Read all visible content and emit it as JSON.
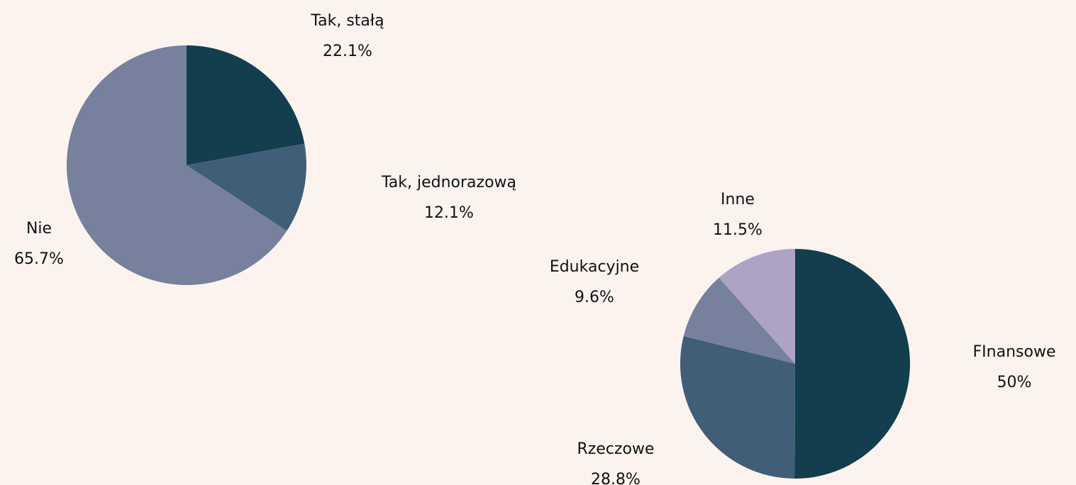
{
  "chart_data": [
    {
      "type": "pie",
      "categories": [
        "Tak, stałą",
        "Tak, jednorazową",
        "Nie"
      ],
      "values": [
        22.1,
        12.1,
        65.7
      ],
      "value_labels": [
        "22.1%",
        "12.1%",
        "65.7%"
      ],
      "colors": [
        "#123e4d",
        "#415e78",
        "#77819e"
      ]
    },
    {
      "type": "pie",
      "categories": [
        "FInansowe",
        "Rzeczowe",
        "Edukacyjne",
        "Inne"
      ],
      "values": [
        50,
        28.8,
        9.6,
        11.5
      ],
      "value_labels": [
        "50%",
        "28.8%",
        "9.6%",
        "11.5%"
      ],
      "colors": [
        "#123e4d",
        "#415e78",
        "#77819e",
        "#ada3c5"
      ]
    }
  ]
}
